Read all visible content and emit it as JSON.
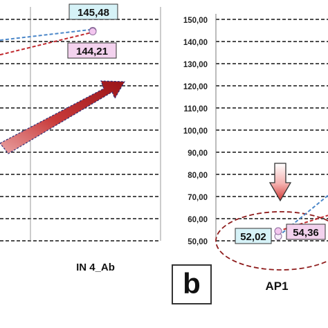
{
  "panel_label": "b",
  "chart_data": [
    {
      "type": "line",
      "panel": "a (partial)",
      "x_categories": [
        "IN 4_Ab"
      ],
      "ylim": [
        50,
        150
      ],
      "y_step": 10,
      "grid": true,
      "series": [
        {
          "color": "#4a86c8",
          "style": "dashed",
          "marker": "circle-light",
          "values": [
            145.48
          ]
        },
        {
          "color": "#c0282d",
          "style": "dashed",
          "marker": "circle-pink",
          "values": [
            144.21
          ]
        }
      ],
      "data_labels": [
        {
          "text": "145,48",
          "x": "IN 4_Ab",
          "value": 145.48,
          "box_color": "#d6f2f7"
        },
        {
          "text": "144,21",
          "x": "IN 4_Ab",
          "value": 144.21,
          "box_color": "#f3d2ee"
        }
      ],
      "arrow_color": "#b81e24"
    },
    {
      "type": "line",
      "panel": "b",
      "x_categories": [
        "AP1"
      ],
      "ylim": [
        50,
        150
      ],
      "y_step": 10,
      "y_tick_labels": [
        "150,00",
        "140,00",
        "130,00",
        "120,00",
        "110,00",
        "100,00",
        "90,00",
        "80,00",
        "70,00",
        "60,00",
        "50,00"
      ],
      "grid": true,
      "series": [
        {
          "color": "#4a86c8",
          "style": "dashed",
          "marker": "circle-light",
          "values": [
            52.02
          ]
        },
        {
          "color": "#c0282d",
          "style": "dashed",
          "marker": "circle-pink",
          "values": [
            54.36
          ]
        }
      ],
      "data_labels": [
        {
          "text": "52,02",
          "x": "AP1",
          "value": 52.02,
          "box_color": "#d6f2f7"
        },
        {
          "text": "54,36",
          "x": "AP1",
          "value": 54.36,
          "box_color": "#f3d2ee"
        }
      ],
      "arrow_color": "#d8423f"
    }
  ]
}
